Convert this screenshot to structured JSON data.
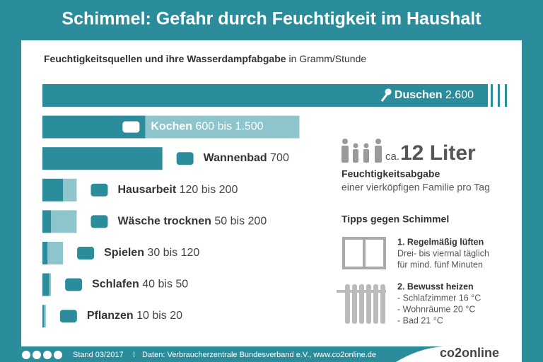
{
  "chart_data": {
    "type": "range-bar",
    "title": "Schimmel: Gefahr durch Feuchtigkeit im Haushalt",
    "subtitle": "Feuchtigkeitsquellen und ihre Wasserdampfabgabe",
    "unit": "in Gramm/Stunde",
    "categories": [
      "Duschen",
      "Kochen",
      "Wannenbad",
      "Hausarbeit",
      "Wäsche trocknen",
      "Spielen",
      "Schlafen",
      "Pflanzen"
    ],
    "values": [
      2600,
      600,
      700,
      120,
      50,
      30,
      40,
      10
    ],
    "max_values": [
      null,
      1500,
      null,
      200,
      200,
      120,
      50,
      20
    ],
    "value_labels": [
      "2.600",
      "600 bis 1.500",
      "700",
      "120 bis 200",
      "50 bis 200",
      "30 bis 120",
      "40 bis 50",
      "10 bis 20"
    ],
    "color": "#2b8d9c",
    "range_color": "#8ec5cd"
  },
  "family": {
    "prefix": "ca.",
    "amount": "12 Liter",
    "label": "Feuchtigkeitsabgabe",
    "text": "einer vierköpfigen Familie pro Tag"
  },
  "tips": {
    "title": "Tipps gegen Schimmel",
    "items": [
      {
        "title": "1. Regelmäßig lüften",
        "lines": [
          "Drei- bis viermal täglich",
          "für mind. fünf Minuten"
        ]
      },
      {
        "title": "2. Bewusst heizen",
        "lines": [
          "- Schlafzimmer 16 °C",
          "- Wohnräume 20 °C",
          "- Bad 21 °C"
        ]
      }
    ]
  },
  "footer": {
    "date": "Stand 03/2017",
    "separator": "I",
    "source": "Daten: Verbraucherzentrale Bundesverband e.V., www.co2online.de",
    "brand": "co2online"
  }
}
